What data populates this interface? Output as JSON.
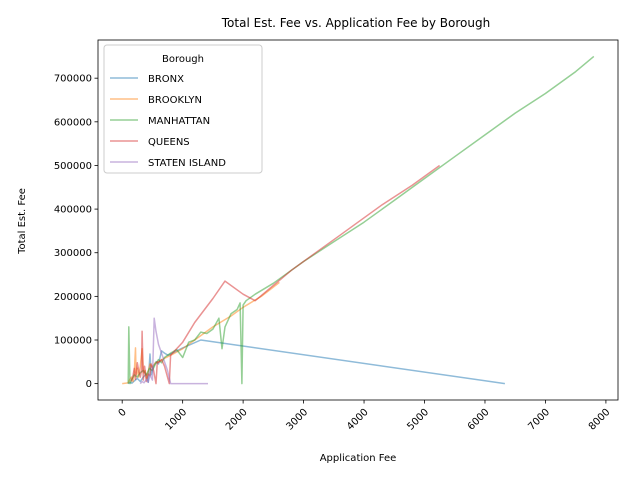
{
  "chart_data": {
    "type": "line",
    "title": "Total Est. Fee vs. Application Fee by Borough",
    "xlabel": "Application Fee",
    "ylabel": "Total Est. Fee",
    "xlim": [
      -400,
      8200
    ],
    "ylim": [
      -37500,
      787500
    ],
    "xticks": [
      0,
      1000,
      2000,
      3000,
      4000,
      5000,
      6000,
      7000,
      8000
    ],
    "yticks": [
      0,
      100000,
      200000,
      300000,
      400000,
      500000,
      600000,
      700000
    ],
    "grid": false,
    "legend": {
      "title": "Borough",
      "placement": "upper-left"
    },
    "series": [
      {
        "name": "BRONX",
        "color": "#1f77b4",
        "x": [
          100,
          130,
          160,
          200,
          250,
          300,
          350,
          400,
          430,
          460,
          480,
          520,
          560,
          600,
          650,
          700,
          760,
          1000,
          1300,
          6330
        ],
        "y": [
          0,
          3000,
          1000,
          6000,
          12000,
          5000,
          15000,
          22000,
          3000,
          68000,
          20000,
          40000,
          50000,
          45000,
          75000,
          70000,
          65000,
          82000,
          100000,
          0
        ]
      },
      {
        "name": "BROOKLYN",
        "color": "#ff7f0e",
        "x": [
          0,
          100,
          120,
          150,
          180,
          200,
          220,
          230,
          250,
          270,
          300,
          330,
          350,
          380,
          400,
          430,
          460,
          500,
          550,
          600,
          700,
          800,
          1000,
          1200,
          1500,
          1800,
          2000,
          2300,
          2600
        ],
        "y": [
          0,
          2000,
          8000,
          15000,
          5000,
          25000,
          82000,
          20000,
          35000,
          15000,
          40000,
          80000,
          25000,
          30000,
          12000,
          28000,
          45000,
          38000,
          48000,
          50000,
          58000,
          65000,
          80000,
          100000,
          130000,
          155000,
          175000,
          200000,
          232000
        ]
      },
      {
        "name": "MANHATTAN",
        "color": "#2ca02c",
        "x": [
          100,
          110,
          130,
          160,
          200,
          250,
          300,
          350,
          400,
          450,
          500,
          550,
          600,
          650,
          700,
          800,
          900,
          1000,
          1100,
          1200,
          1300,
          1400,
          1500,
          1600,
          1650,
          1700,
          1800,
          1900,
          1950,
          1980,
          2000,
          2050,
          2200,
          2500,
          3000,
          3500,
          4000,
          4500,
          5000,
          5500,
          6000,
          6500,
          7000,
          7500,
          7800
        ],
        "y": [
          0,
          130000,
          0,
          10000,
          20000,
          15000,
          25000,
          30000,
          20000,
          35000,
          30000,
          45000,
          55000,
          48000,
          60000,
          70000,
          78000,
          60000,
          95000,
          100000,
          118000,
          115000,
          125000,
          150000,
          80000,
          130000,
          160000,
          170000,
          185000,
          0,
          180000,
          190000,
          205000,
          230000,
          280000,
          325000,
          370000,
          420000,
          470000,
          520000,
          570000,
          620000,
          665000,
          715000,
          750000
        ]
      },
      {
        "name": "QUEENS",
        "color": "#d62728",
        "x": [
          150,
          180,
          200,
          220,
          250,
          280,
          300,
          320,
          330,
          350,
          370,
          400,
          430,
          460,
          480,
          520,
          560,
          580,
          600,
          650,
          700,
          780,
          800,
          1000,
          1200,
          1500,
          1700,
          2000,
          2200,
          2500,
          2800,
          3200,
          3600,
          3900,
          4300,
          4800,
          5250
        ],
        "y": [
          5000,
          20000,
          35000,
          10000,
          48000,
          25000,
          15000,
          30000,
          120000,
          8000,
          40000,
          5000,
          22000,
          18000,
          45000,
          30000,
          0,
          50000,
          48000,
          55000,
          40000,
          0,
          65000,
          95000,
          140000,
          195000,
          235000,
          205000,
          190000,
          225000,
          260000,
          300000,
          340000,
          370000,
          410000,
          455000,
          500000
        ]
      },
      {
        "name": "STATEN ISLAND",
        "color": "#9467bd",
        "x": [
          300,
          330,
          360,
          400,
          430,
          460,
          500,
          530,
          560,
          600,
          650,
          700,
          750,
          800,
          900,
          1000,
          1100,
          1200,
          1300,
          1420
        ],
        "y": [
          0,
          5000,
          2000,
          10000,
          3000,
          20000,
          8000,
          150000,
          120000,
          90000,
          70000,
          50000,
          30000,
          0,
          0,
          0,
          0,
          0,
          0,
          0
        ]
      }
    ]
  }
}
